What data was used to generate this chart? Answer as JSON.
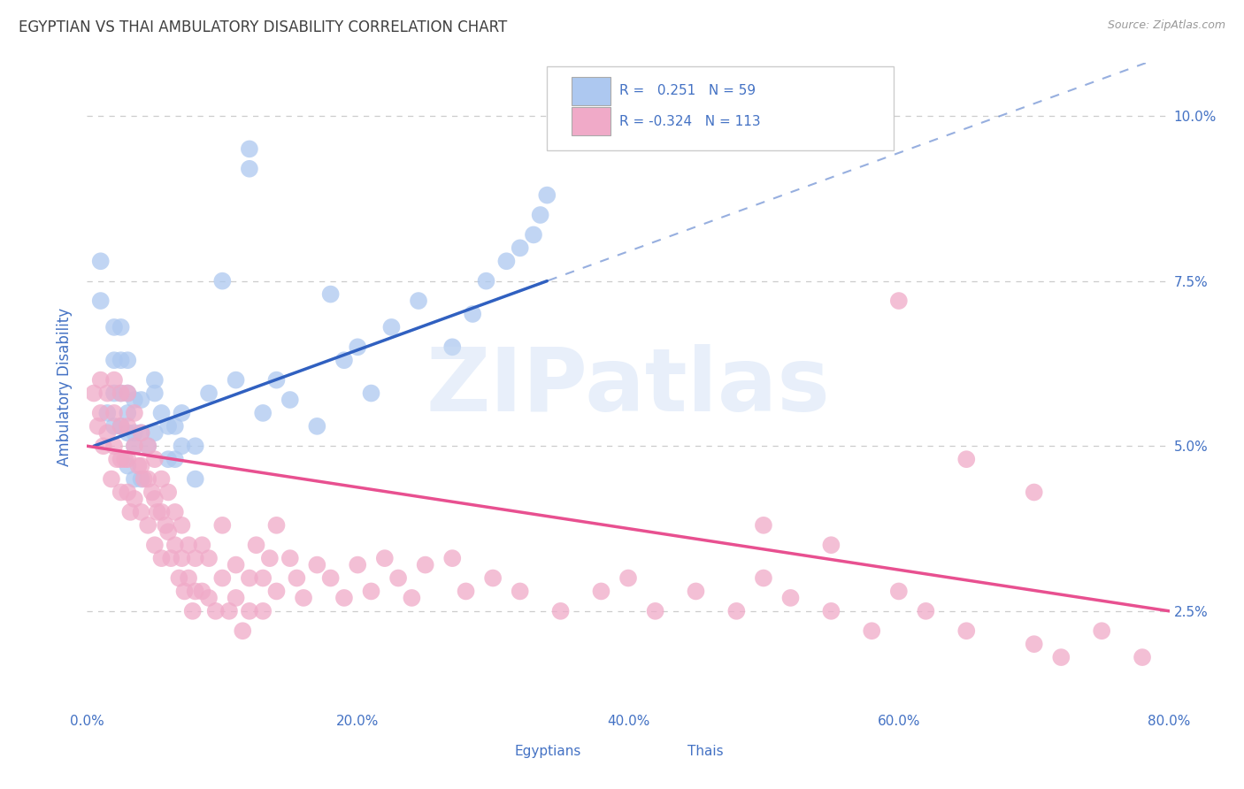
{
  "title": "EGYPTIAN VS THAI AMBULATORY DISABILITY CORRELATION CHART",
  "source": "Source: ZipAtlas.com",
  "ylabel": "Ambulatory Disability",
  "legend_labels": [
    "Egyptians",
    "Thais"
  ],
  "egyptian_R": "0.251",
  "egyptian_N": "59",
  "thai_R": "-0.324",
  "thai_N": "113",
  "egyptian_color": "#adc8f0",
  "thai_color": "#f0aac8",
  "egyptian_line_color": "#3060c0",
  "thai_line_color": "#e85090",
  "text_color": "#4472c4",
  "title_color": "#404040",
  "watermark_text": "ZIPatlas",
  "xmin": 0.0,
  "xmax": 0.8,
  "ymin": 0.01,
  "ymax": 0.108,
  "xtick_positions": [
    0.0,
    0.2,
    0.4,
    0.6,
    0.8
  ],
  "xtick_labels": [
    "0.0%",
    "20.0%",
    "40.0%",
    "60.0%",
    "80.0%"
  ],
  "ytick_positions": [
    0.025,
    0.05,
    0.075,
    0.1
  ],
  "ytick_labels": [
    "2.5%",
    "5.0%",
    "7.5%",
    "10.0%"
  ],
  "egyptian_scatter_x": [
    0.01,
    0.01,
    0.015,
    0.02,
    0.02,
    0.02,
    0.02,
    0.025,
    0.025,
    0.025,
    0.025,
    0.03,
    0.03,
    0.03,
    0.03,
    0.03,
    0.035,
    0.035,
    0.035,
    0.035,
    0.04,
    0.04,
    0.04,
    0.045,
    0.05,
    0.05,
    0.05,
    0.055,
    0.06,
    0.06,
    0.065,
    0.065,
    0.07,
    0.07,
    0.08,
    0.08,
    0.09,
    0.1,
    0.11,
    0.13,
    0.14,
    0.15,
    0.17,
    0.19,
    0.21,
    0.225,
    0.245,
    0.27,
    0.285,
    0.295,
    0.31,
    0.32,
    0.33,
    0.335,
    0.34,
    0.12,
    0.12,
    0.18,
    0.2
  ],
  "egyptian_scatter_y": [
    0.072,
    0.078,
    0.055,
    0.058,
    0.063,
    0.068,
    0.053,
    0.053,
    0.058,
    0.063,
    0.068,
    0.055,
    0.058,
    0.063,
    0.047,
    0.052,
    0.052,
    0.057,
    0.045,
    0.05,
    0.052,
    0.057,
    0.045,
    0.05,
    0.058,
    0.052,
    0.06,
    0.055,
    0.048,
    0.053,
    0.048,
    0.053,
    0.05,
    0.055,
    0.045,
    0.05,
    0.058,
    0.075,
    0.06,
    0.055,
    0.06,
    0.057,
    0.053,
    0.063,
    0.058,
    0.068,
    0.072,
    0.065,
    0.07,
    0.075,
    0.078,
    0.08,
    0.082,
    0.085,
    0.088,
    0.092,
    0.095,
    0.073,
    0.065
  ],
  "thai_scatter_x": [
    0.005,
    0.008,
    0.01,
    0.01,
    0.012,
    0.015,
    0.015,
    0.018,
    0.02,
    0.02,
    0.02,
    0.022,
    0.025,
    0.025,
    0.025,
    0.025,
    0.028,
    0.03,
    0.03,
    0.03,
    0.03,
    0.032,
    0.035,
    0.035,
    0.035,
    0.038,
    0.04,
    0.04,
    0.04,
    0.042,
    0.045,
    0.045,
    0.045,
    0.048,
    0.05,
    0.05,
    0.05,
    0.052,
    0.055,
    0.055,
    0.055,
    0.058,
    0.06,
    0.06,
    0.062,
    0.065,
    0.065,
    0.068,
    0.07,
    0.07,
    0.072,
    0.075,
    0.075,
    0.078,
    0.08,
    0.08,
    0.085,
    0.085,
    0.09,
    0.09,
    0.095,
    0.1,
    0.1,
    0.105,
    0.11,
    0.11,
    0.115,
    0.12,
    0.12,
    0.125,
    0.13,
    0.13,
    0.135,
    0.14,
    0.14,
    0.15,
    0.155,
    0.16,
    0.17,
    0.18,
    0.19,
    0.2,
    0.21,
    0.22,
    0.23,
    0.24,
    0.25,
    0.27,
    0.28,
    0.3,
    0.32,
    0.35,
    0.38,
    0.4,
    0.42,
    0.45,
    0.48,
    0.5,
    0.52,
    0.55,
    0.58,
    0.6,
    0.62,
    0.65,
    0.7,
    0.72,
    0.75,
    0.78,
    0.5,
    0.55,
    0.6,
    0.65,
    0.7
  ],
  "thai_scatter_y": [
    0.058,
    0.053,
    0.06,
    0.055,
    0.05,
    0.052,
    0.058,
    0.045,
    0.055,
    0.05,
    0.06,
    0.048,
    0.053,
    0.058,
    0.048,
    0.043,
    0.048,
    0.053,
    0.048,
    0.043,
    0.058,
    0.04,
    0.055,
    0.05,
    0.042,
    0.047,
    0.052,
    0.047,
    0.04,
    0.045,
    0.05,
    0.045,
    0.038,
    0.043,
    0.048,
    0.042,
    0.035,
    0.04,
    0.045,
    0.04,
    0.033,
    0.038,
    0.043,
    0.037,
    0.033,
    0.04,
    0.035,
    0.03,
    0.038,
    0.033,
    0.028,
    0.035,
    0.03,
    0.025,
    0.033,
    0.028,
    0.035,
    0.028,
    0.033,
    0.027,
    0.025,
    0.03,
    0.038,
    0.025,
    0.032,
    0.027,
    0.022,
    0.03,
    0.025,
    0.035,
    0.03,
    0.025,
    0.033,
    0.028,
    0.038,
    0.033,
    0.03,
    0.027,
    0.032,
    0.03,
    0.027,
    0.032,
    0.028,
    0.033,
    0.03,
    0.027,
    0.032,
    0.033,
    0.028,
    0.03,
    0.028,
    0.025,
    0.028,
    0.03,
    0.025,
    0.028,
    0.025,
    0.03,
    0.027,
    0.025,
    0.022,
    0.028,
    0.025,
    0.022,
    0.02,
    0.018,
    0.022,
    0.018,
    0.038,
    0.035,
    0.072,
    0.048,
    0.043
  ]
}
